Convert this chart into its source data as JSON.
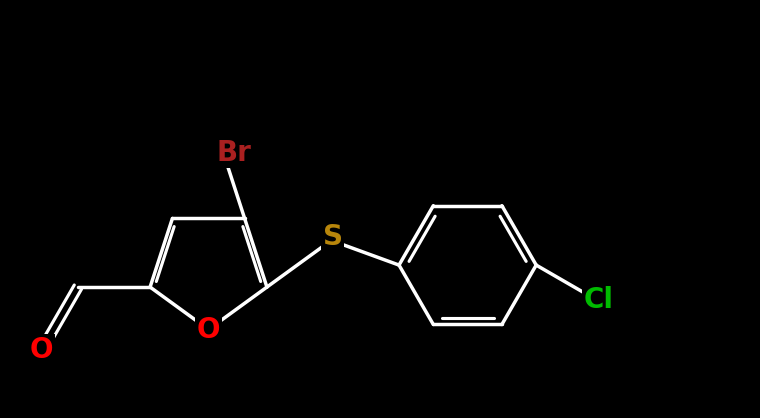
{
  "bg_color": "#000000",
  "bond_color": "#ffffff",
  "bond_width": 2.5,
  "colors": {
    "Br": "#aa2020",
    "S": "#b8860b",
    "O": "#ff0000",
    "Cl": "#00bb00"
  },
  "fontsize": 20,
  "xlim": [
    0,
    10
  ],
  "ylim": [
    0,
    5.5
  ]
}
